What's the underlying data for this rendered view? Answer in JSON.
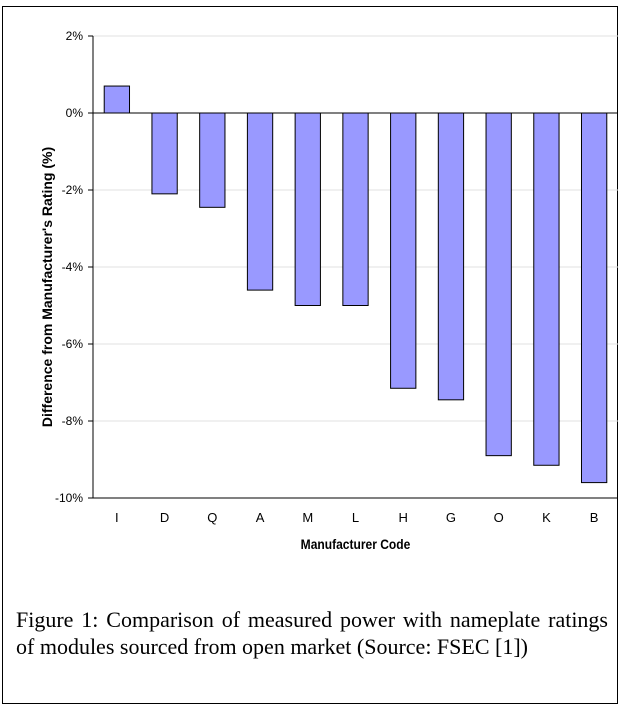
{
  "chart_data": {
    "type": "bar",
    "categories": [
      "I",
      "D",
      "Q",
      "A",
      "M",
      "L",
      "H",
      "G",
      "O",
      "K",
      "B"
    ],
    "values": [
      0.7,
      -2.1,
      -2.45,
      -4.6,
      -5.0,
      -5.0,
      -7.15,
      -7.45,
      -8.9,
      -9.15,
      -9.6
    ],
    "xlabel": "Manufacturer Code",
    "ylabel": "Difference from Manufacturer's Rating (%)",
    "ylim": [
      -10,
      2
    ],
    "yticks": [
      2,
      0,
      -2,
      -4,
      -6,
      -8,
      -10
    ],
    "ytick_labels": [
      "2%",
      "0%",
      "-2%",
      "-4%",
      "-6%",
      "-8%",
      "-10%"
    ],
    "bar_color": "#9999ff",
    "grid": true,
    "legend": "none"
  },
  "caption": {
    "text": "Figure 1: Comparison of measured power with nameplate ratings of modules sourced from open market (Source: FSEC [1])"
  }
}
